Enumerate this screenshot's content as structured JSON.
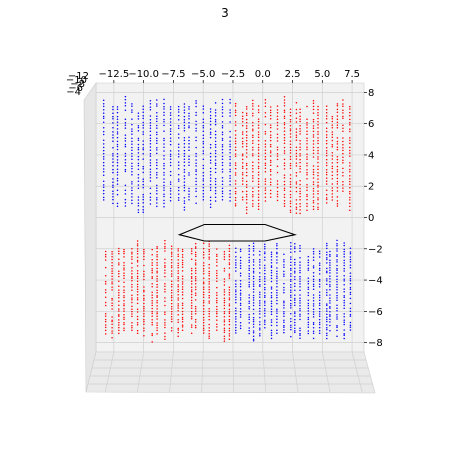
{
  "chart_data": {
    "type": "scatter",
    "title": "3",
    "projection": "3d",
    "grid": true,
    "x_ticks": [
      "−12.5",
      "−10.0",
      "−7.5",
      "−5.0",
      "−2.5",
      "0.0",
      "2.5",
      "5.0",
      "7.5"
    ],
    "x_tick_values": [
      -12.5,
      -10,
      -7.5,
      -5,
      -2.5,
      0,
      2.5,
      5,
      7.5
    ],
    "xlim": [
      -14,
      8.5
    ],
    "y_ticks": [
      "−12",
      "−10",
      "−8",
      "−6",
      "−4"
    ],
    "z_ticks": [
      "8",
      "6",
      "4",
      "2",
      "0",
      "−2",
      "−4",
      "−6",
      "−8"
    ],
    "z_tick_values": [
      8,
      6,
      4,
      2,
      0,
      -2,
      -4,
      -6,
      -8
    ],
    "zlim": [
      -8.6,
      8.6
    ],
    "series": [
      {
        "color": "#0000ff",
        "quadrant": "upper-left",
        "x_range": [
          -13.5,
          -2.5
        ],
        "z_range": [
          0.2,
          7.8
        ]
      },
      {
        "color": "#ff0000",
        "quadrant": "upper-right",
        "x_range": [
          -2.5,
          7.5
        ],
        "z_range": [
          0.2,
          7.8
        ]
      },
      {
        "color": "#ff0000",
        "quadrant": "lower-left",
        "x_range": [
          -13.5,
          -2.5
        ],
        "z_range": [
          -8.0,
          -1.4
        ]
      },
      {
        "color": "#0000ff",
        "quadrant": "lower-right",
        "x_range": [
          -2.5,
          7.5
        ],
        "z_range": [
          -8.0,
          -1.4
        ]
      }
    ],
    "hexagon": {
      "color": "#000000",
      "x": [
        -7.0,
        -4.9,
        0.2,
        2.7,
        0.2,
        -4.9
      ],
      "z": [
        -1.1,
        -0.45,
        -0.45,
        -1.1,
        -1.5,
        -1.5
      ]
    }
  }
}
